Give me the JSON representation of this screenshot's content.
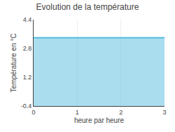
{
  "chart_data": {
    "type": "area",
    "title": "Evolution de la température",
    "xlabel": "heure par heure",
    "ylabel": "Température en °C",
    "x": [
      0,
      3
    ],
    "values": [
      3.4,
      3.4
    ],
    "color": "#55bbdd",
    "xlim": [
      0,
      3
    ],
    "ylim": [
      -0.4,
      4.4
    ],
    "xticks": [
      0,
      1,
      2,
      3
    ],
    "yticks": [
      -0.4,
      1.2,
      2.8,
      4.4
    ],
    "grid": "x"
  }
}
